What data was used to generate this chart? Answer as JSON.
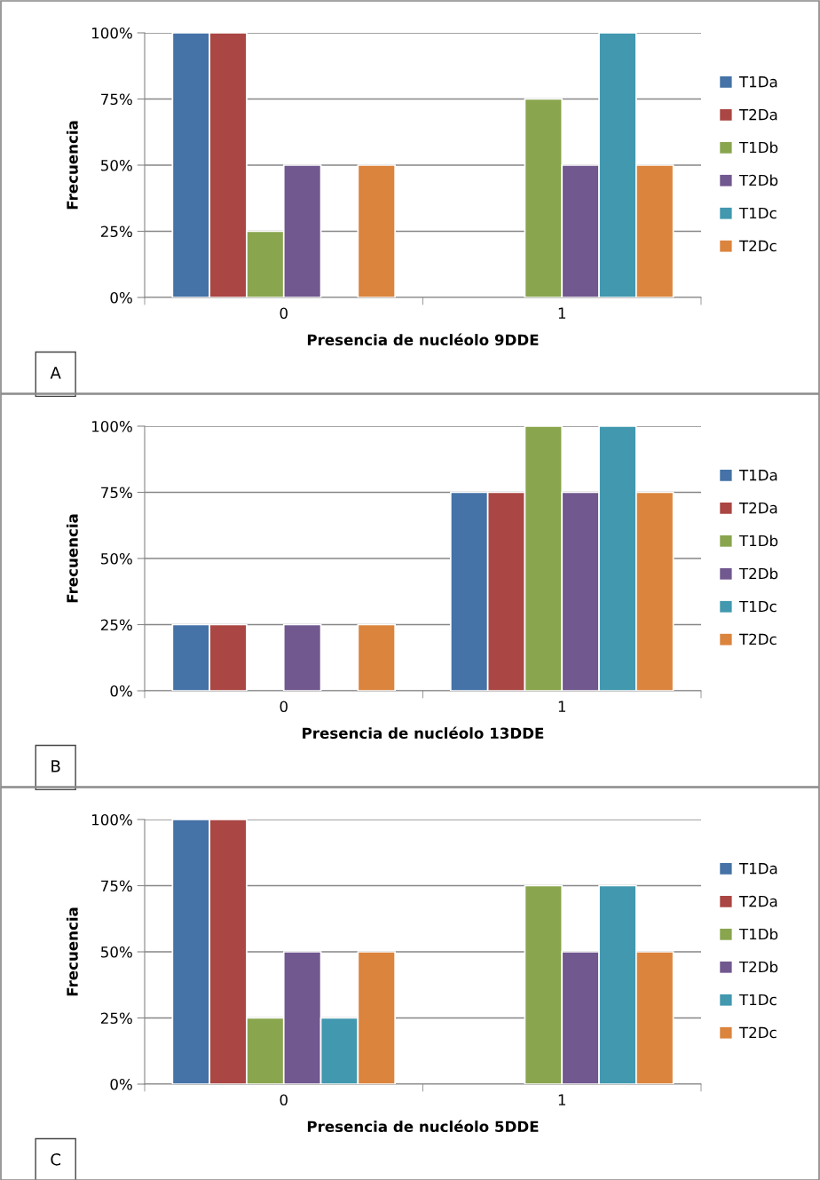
{
  "chart_data": [
    {
      "type": "bar",
      "xlabel": "Presencia de nucléolo 9DDE",
      "ylabel": "Frecuencia",
      "categories": [
        "0",
        "1"
      ],
      "ylim": [
        0,
        100
      ],
      "yticks": [
        {
          "value": 0,
          "label": "0%"
        },
        {
          "value": 25,
          "label": "25%"
        },
        {
          "value": 50,
          "label": "50%"
        },
        {
          "value": 75,
          "label": "75%"
        },
        {
          "value": 100,
          "label": "100%"
        }
      ],
      "grid": "y",
      "legend": "right",
      "annotations": [
        "A"
      ],
      "series": [
        {
          "name": "T1Da",
          "color": "#4572a7",
          "values": [
            100,
            0
          ]
        },
        {
          "name": "T2Da",
          "color": "#aa4643",
          "values": [
            100,
            0
          ]
        },
        {
          "name": "T1Db",
          "color": "#89a54e",
          "values": [
            25,
            75
          ]
        },
        {
          "name": "T2Db",
          "color": "#71588f",
          "values": [
            50,
            50
          ]
        },
        {
          "name": "T1Dc",
          "color": "#4198af",
          "values": [
            0,
            100
          ]
        },
        {
          "name": "T2Dc",
          "color": "#db843d",
          "values": [
            50,
            50
          ]
        }
      ]
    },
    {
      "type": "bar",
      "xlabel": "Presencia de nucléolo 13DDE",
      "ylabel": "Frecuencia",
      "categories": [
        "0",
        "1"
      ],
      "ylim": [
        0,
        100
      ],
      "yticks": [
        {
          "value": 0,
          "label": "0%"
        },
        {
          "value": 25,
          "label": "25%"
        },
        {
          "value": 50,
          "label": "50%"
        },
        {
          "value": 75,
          "label": "75%"
        },
        {
          "value": 100,
          "label": "100%"
        }
      ],
      "grid": "y",
      "legend": "right",
      "annotations": [
        "B"
      ],
      "series": [
        {
          "name": "T1Da",
          "color": "#4572a7",
          "values": [
            25,
            75
          ]
        },
        {
          "name": "T2Da",
          "color": "#aa4643",
          "values": [
            25,
            75
          ]
        },
        {
          "name": "T1Db",
          "color": "#89a54e",
          "values": [
            0,
            100
          ]
        },
        {
          "name": "T2Db",
          "color": "#71588f",
          "values": [
            25,
            75
          ]
        },
        {
          "name": "T1Dc",
          "color": "#4198af",
          "values": [
            0,
            100
          ]
        },
        {
          "name": "T2Dc",
          "color": "#db843d",
          "values": [
            25,
            75
          ]
        }
      ]
    },
    {
      "type": "bar",
      "xlabel": "Presencia de nucléolo 5DDE",
      "ylabel": "Frecuencia",
      "categories": [
        "0",
        "1"
      ],
      "ylim": [
        0,
        100
      ],
      "yticks": [
        {
          "value": 0,
          "label": "0%"
        },
        {
          "value": 25,
          "label": "25%"
        },
        {
          "value": 50,
          "label": "50%"
        },
        {
          "value": 75,
          "label": "75%"
        },
        {
          "value": 100,
          "label": "100%"
        }
      ],
      "grid": "y",
      "legend": "right",
      "annotations": [
        "C"
      ],
      "series": [
        {
          "name": "T1Da",
          "color": "#4572a7",
          "values": [
            100,
            0
          ]
        },
        {
          "name": "T2Da",
          "color": "#aa4643",
          "values": [
            100,
            0
          ]
        },
        {
          "name": "T1Db",
          "color": "#89a54e",
          "values": [
            25,
            75
          ]
        },
        {
          "name": "T2Db",
          "color": "#71588f",
          "values": [
            50,
            50
          ]
        },
        {
          "name": "T1Dc",
          "color": "#4198af",
          "values": [
            25,
            75
          ]
        },
        {
          "name": "T2Dc",
          "color": "#db843d",
          "values": [
            50,
            50
          ]
        }
      ]
    }
  ]
}
